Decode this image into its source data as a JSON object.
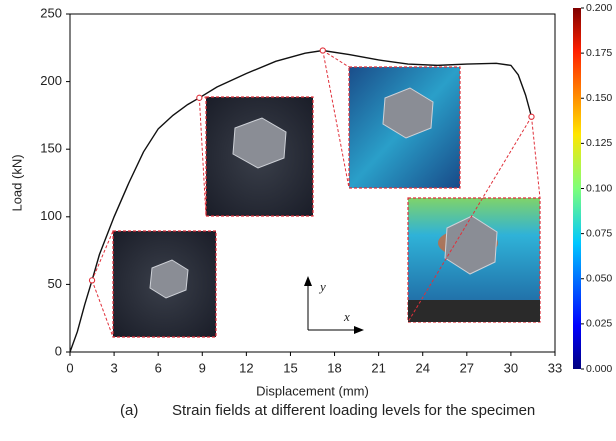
{
  "chart_data": {
    "type": "line",
    "x_label": "Displacement (mm)",
    "y_label": "Load (kN)",
    "x": [
      0,
      0.5,
      1,
      1.5,
      2,
      3,
      4,
      5,
      6,
      7,
      8,
      8.8,
      10,
      12,
      14,
      16,
      17.2,
      19,
      21,
      23,
      25,
      27,
      29,
      30,
      30.5,
      31,
      31.4
    ],
    "values": [
      0,
      15,
      35,
      53,
      72,
      100,
      125,
      148,
      165,
      175,
      183,
      188,
      196,
      206,
      215,
      221,
      223,
      220,
      216,
      213,
      212,
      213,
      213.5,
      212,
      205,
      190,
      174
    ],
    "color": "#111111",
    "markers": {
      "x": [
        1.5,
        8.8,
        17.2,
        31.4
      ],
      "values": [
        53,
        188,
        223,
        174
      ],
      "color": "#e0303a"
    },
    "xlim": [
      0,
      33
    ],
    "xticks": [
      0,
      3,
      6,
      9,
      12,
      15,
      18,
      21,
      24,
      27,
      30,
      33
    ],
    "ylim": [
      0,
      250
    ],
    "yticks": [
      0,
      50,
      100,
      150,
      200,
      250
    ],
    "colorbar": {
      "lim": [
        0,
        0.2
      ],
      "ticks": [
        {
          "value": 0,
          "label": "0.000"
        },
        {
          "value": 0.025,
          "label": "0.025"
        },
        {
          "value": 0.05,
          "label": "0.050"
        },
        {
          "value": 0.075,
          "label": "0.075"
        },
        {
          "value": 0.1,
          "label": "0.100"
        },
        {
          "value": 0.125,
          "label": "0.125"
        },
        {
          "value": 0.15,
          "label": "0.150"
        },
        {
          "value": 0.175,
          "label": "0.175"
        },
        {
          "value": 0.2,
          "label": "0.200"
        }
      ]
    },
    "inset_axis_labels": [
      "y",
      "x"
    ],
    "caption": {
      "label": "(a)",
      "text": "Strain fields at different loading levels for the specimen"
    }
  }
}
